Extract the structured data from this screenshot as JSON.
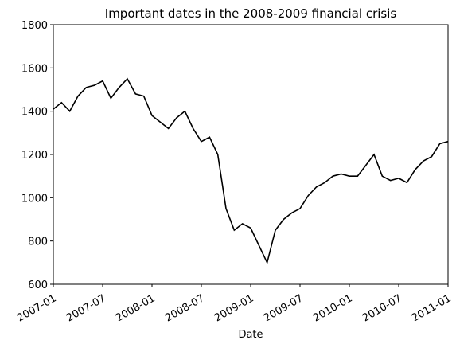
{
  "chart_data": {
    "type": "line",
    "title": "Important dates in the 2008-2009 financial crisis",
    "x_label": "Date",
    "x": [
      "2007-01",
      "2007-02",
      "2007-03",
      "2007-04",
      "2007-05",
      "2007-06",
      "2007-07",
      "2007-08",
      "2007-09",
      "2007-10",
      "2007-11",
      "2007-12",
      "2008-01",
      "2008-02",
      "2008-03",
      "2008-04",
      "2008-05",
      "2008-06",
      "2008-07",
      "2008-08",
      "2008-09",
      "2008-10",
      "2008-11",
      "2008-12",
      "2009-01",
      "2009-02",
      "2009-03",
      "2009-04",
      "2009-05",
      "2009-06",
      "2009-07",
      "2009-08",
      "2009-09",
      "2009-10",
      "2009-11",
      "2009-12",
      "2010-01",
      "2010-02",
      "2010-03",
      "2010-04",
      "2010-05",
      "2010-06",
      "2010-07",
      "2010-08",
      "2010-09",
      "2010-10",
      "2010-11",
      "2010-12",
      "2011-01"
    ],
    "series": [
      {
        "color": "#000000",
        "values": [
          1410,
          1440,
          1400,
          1470,
          1510,
          1520,
          1540,
          1460,
          1510,
          1550,
          1480,
          1470,
          1380,
          1350,
          1320,
          1370,
          1400,
          1320,
          1260,
          1280,
          1200,
          950,
          850,
          880,
          860,
          780,
          700,
          850,
          900,
          930,
          950,
          1010,
          1050,
          1070,
          1100,
          1110,
          1100,
          1100,
          1150,
          1200,
          1100,
          1080,
          1090,
          1070,
          1130,
          1170,
          1190,
          1250,
          1260
        ]
      }
    ],
    "xlim": [
      "2007-01",
      "2011-01"
    ],
    "xticks": [
      "2007-01",
      "2007-07",
      "2008-01",
      "2008-07",
      "2009-01",
      "2009-07",
      "2010-01",
      "2010-07",
      "2011-01"
    ],
    "ylim": [
      600,
      1800
    ],
    "yticks": [
      600,
      800,
      1000,
      1200,
      1400,
      1600,
      1800
    ]
  }
}
